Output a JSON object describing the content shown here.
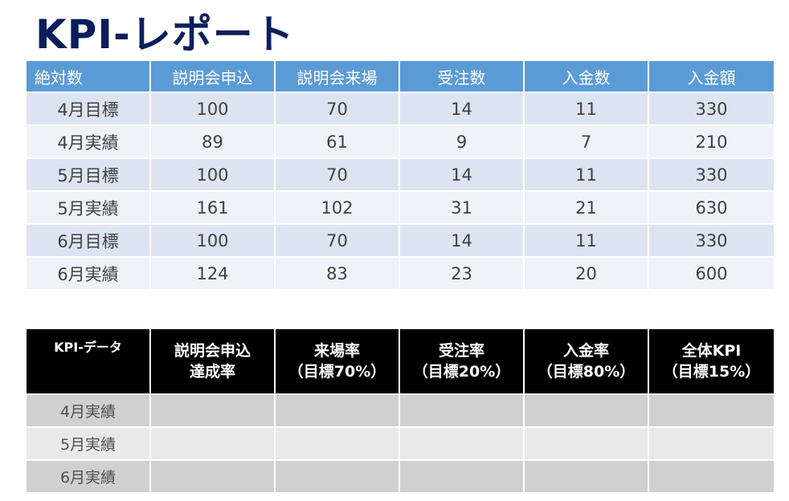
{
  "title": "KPI-レポート",
  "absolute_table": {
    "headers": [
      "絶対数",
      "説明会申込",
      "説明会来場",
      "受注数",
      "入金数",
      "入金額"
    ],
    "rows": [
      [
        "4月目標",
        "100",
        "70",
        "14",
        "11",
        "330"
      ],
      [
        "4月実績",
        "89",
        "61",
        "9",
        "7",
        "210"
      ],
      [
        "5月目標",
        "100",
        "70",
        "14",
        "11",
        "330"
      ],
      [
        "5月実績",
        "161",
        "102",
        "31",
        "21",
        "630"
      ],
      [
        "6月目標",
        "100",
        "70",
        "14",
        "11",
        "330"
      ],
      [
        "6月実績",
        "124",
        "83",
        "23",
        "20",
        "600"
      ]
    ]
  },
  "kpi_table": {
    "headers": [
      {
        "line1": "KPI-データ",
        "line2": ""
      },
      {
        "line1": "説明会申込",
        "line2": "達成率"
      },
      {
        "line1": "来場率",
        "line2": "（目標70%）"
      },
      {
        "line1": "受注率",
        "line2": "（目標20%）"
      },
      {
        "line1": "入金率",
        "line2": "（目標80%）"
      },
      {
        "line1": "全体KPI",
        "line2": "（目標15%）"
      }
    ],
    "rows": [
      [
        "4月実績",
        "",
        "",
        "",
        "",
        ""
      ],
      [
        "5月実績",
        "",
        "",
        "",
        "",
        ""
      ],
      [
        "6月実績",
        "",
        "",
        "",
        "",
        ""
      ]
    ]
  },
  "colors": {
    "title": "#0b1e5c",
    "abs_header_bg": "#5b9bd5",
    "abs_row_odd": "#dde4f1",
    "abs_row_even": "#eff2f8",
    "kpi_header_bg": "#000000",
    "kpi_row_odd": "#d0d0d0",
    "kpi_row_even": "#e9e9e9"
  }
}
